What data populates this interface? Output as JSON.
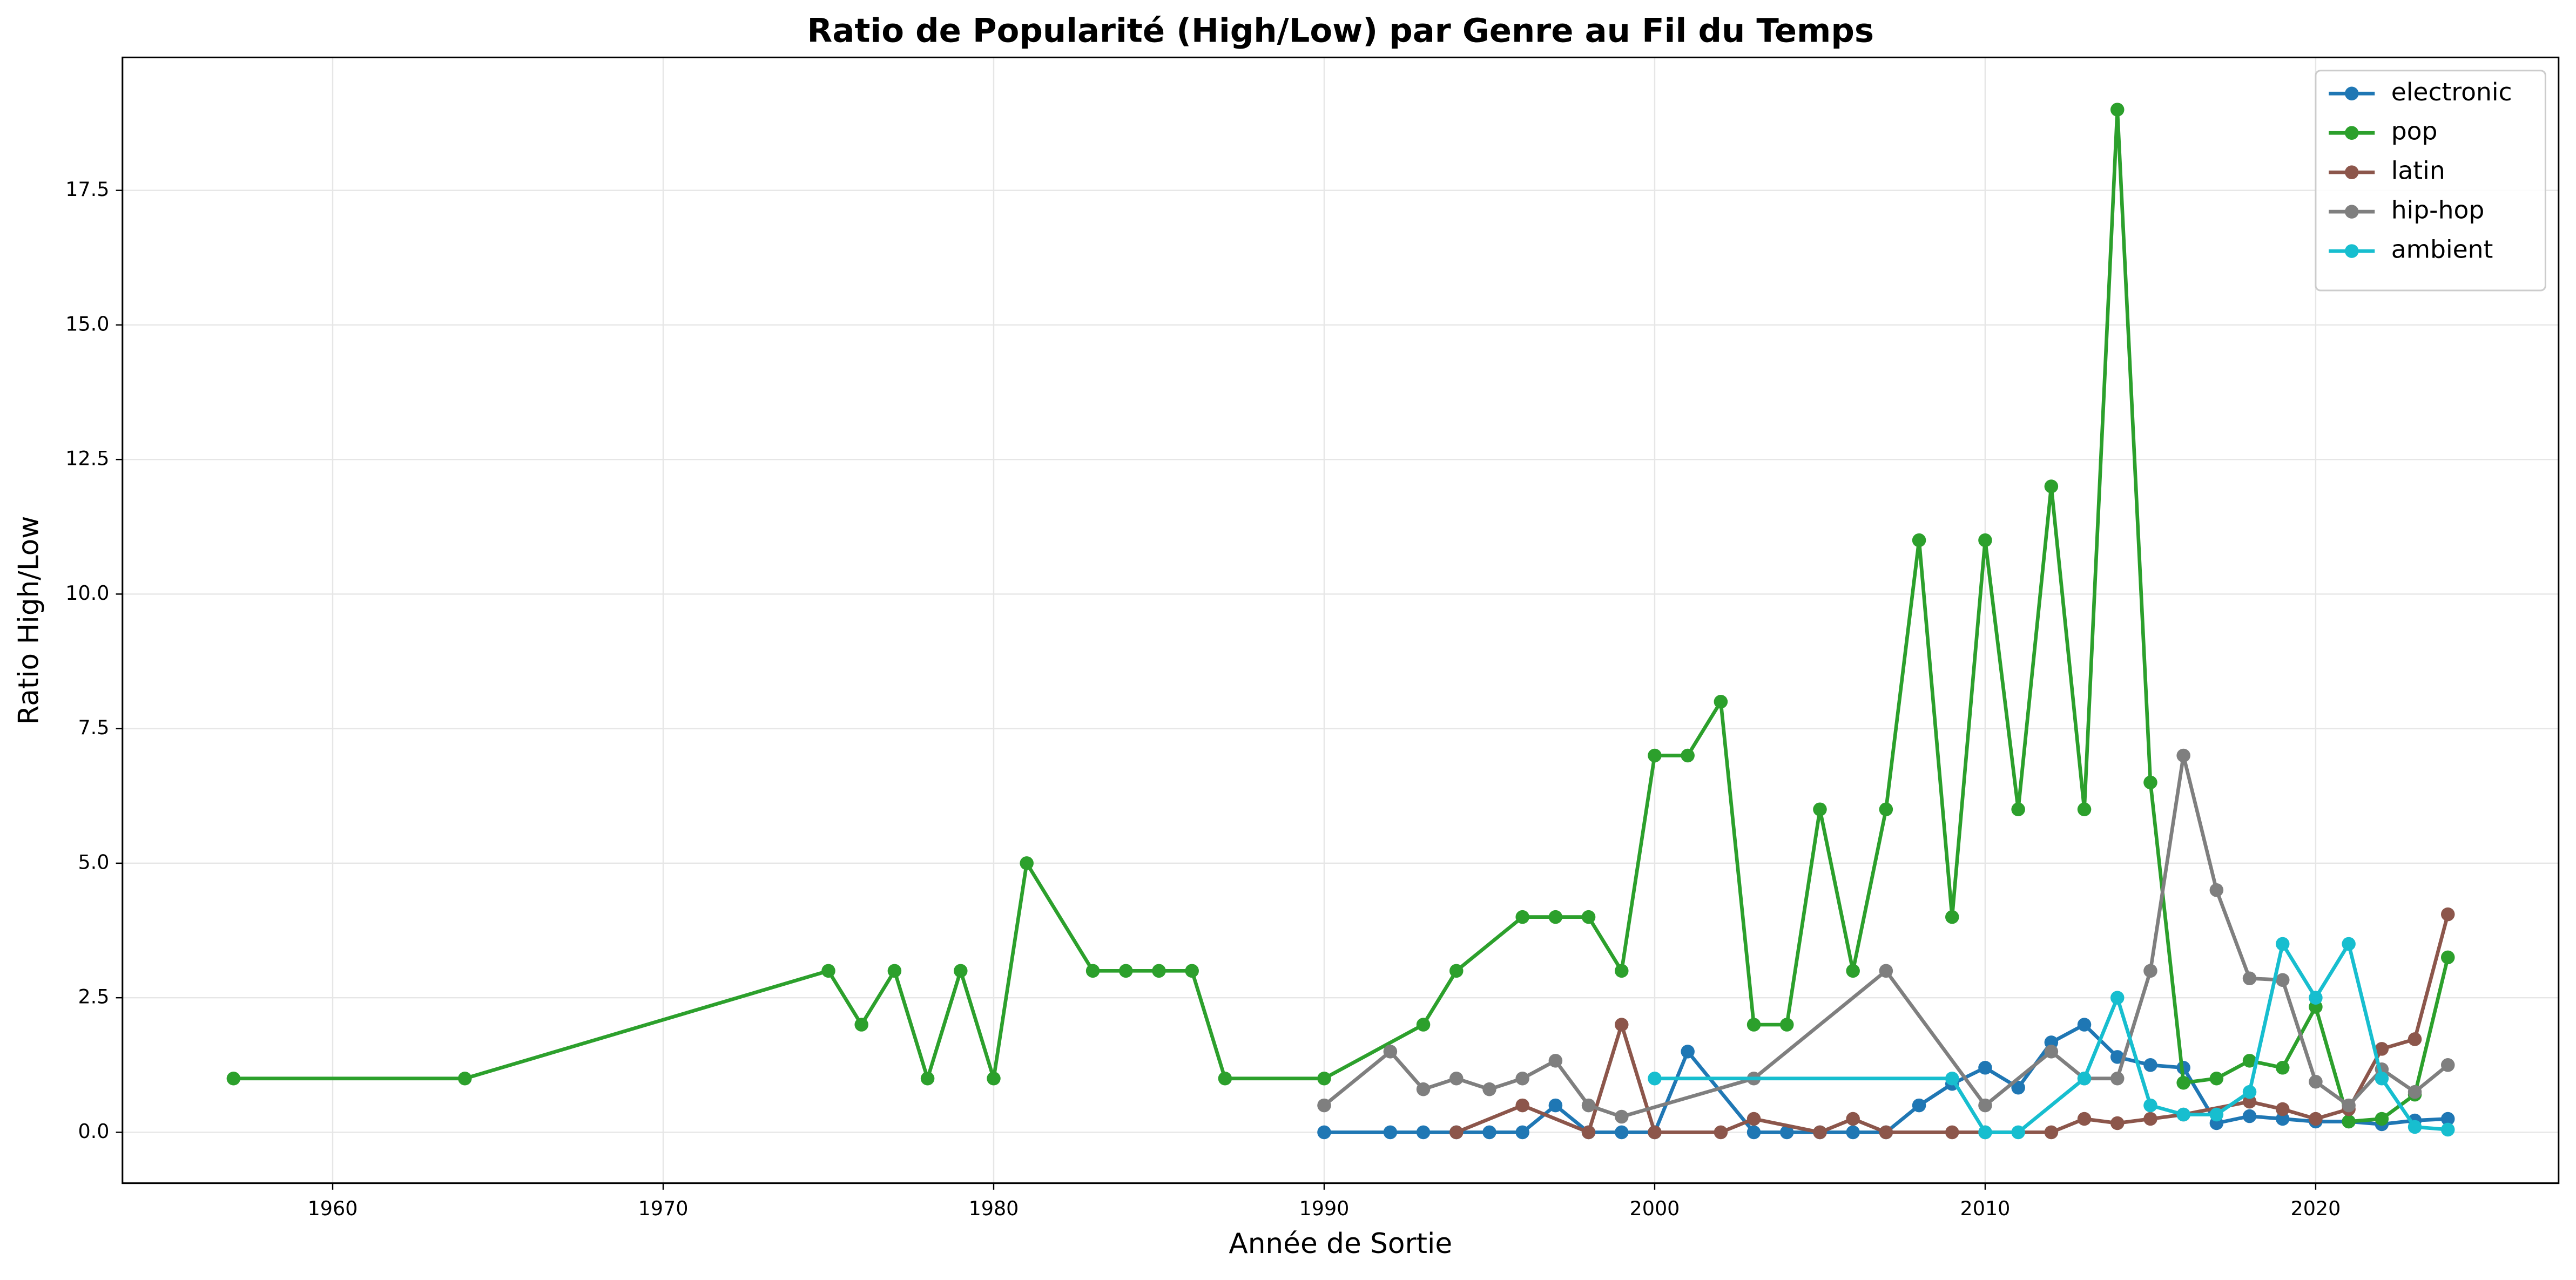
{
  "chart_data": {
    "type": "line",
    "title": "Ratio de Popularité (High/Low) par Genre au Fil du Temps",
    "x_label": "Année de Sortie",
    "y_label": "Ratio High/Low",
    "xlim": [
      1953.64,
      2027.35
    ],
    "ylim": [
      -0.945,
      19.97
    ],
    "xticks": [
      1960,
      1970,
      1980,
      1990,
      2000,
      2010,
      2020
    ],
    "yticks": [
      {
        "value": 0,
        "label": "0.0"
      },
      2.5,
      {
        "value": 5,
        "label": "5.0"
      },
      7.5,
      {
        "value": 10,
        "label": "10.0"
      },
      12.5,
      {
        "value": 15,
        "label": "15.0"
      },
      17.5
    ],
    "grid": true,
    "legend": "upper right",
    "series": [
      {
        "name": "electronic",
        "color": "#1f77b4",
        "x": [
          1990,
          1992,
          1993,
          1994,
          1995,
          1996,
          1997,
          1998,
          1999,
          2000,
          2001,
          2003,
          2004,
          2005,
          2006,
          2007,
          2008,
          2009,
          2010,
          2011,
          2012,
          2013,
          2014,
          2015,
          2016,
          2017,
          2018,
          2019,
          2020,
          2021,
          2022,
          2023,
          2024
        ],
        "values": [
          0,
          0,
          0,
          0,
          0,
          0,
          0.5,
          0,
          0,
          0,
          1.5,
          0,
          0,
          0,
          0,
          0,
          0.5,
          0.9,
          1.2,
          0.83,
          1.67,
          2.0,
          1.4,
          1.25,
          1.2,
          0.17,
          0.3,
          0.25,
          0.2,
          0.2,
          0.15,
          0.22,
          0.25
        ]
      },
      {
        "name": "pop",
        "color": "#2ca02c",
        "x": [
          1957,
          1964,
          1975,
          1976,
          1977,
          1978,
          1979,
          1980,
          1981,
          1983,
          1984,
          1985,
          1986,
          1987,
          1990,
          1993,
          1994,
          1996,
          1997,
          1998,
          1999,
          2000,
          2001,
          2002,
          2003,
          2004,
          2005,
          2006,
          2007,
          2008,
          2009,
          2010,
          2011,
          2012,
          2013,
          2014,
          2015,
          2016,
          2017,
          2018,
          2019,
          2020,
          2021,
          2022,
          2023,
          2024
        ],
        "values": [
          1,
          1,
          3,
          2,
          3,
          1,
          3,
          1,
          5,
          3,
          3,
          3,
          3,
          1,
          1,
          2,
          3,
          4,
          4,
          4,
          3,
          7,
          7,
          8,
          2,
          2,
          6,
          3,
          6,
          11,
          4,
          11,
          6,
          12,
          6,
          19,
          6.5,
          0.92,
          1.0,
          1.33,
          1.2,
          2.33,
          0.2,
          0.25,
          0.7,
          3.25
        ]
      },
      {
        "name": "latin",
        "color": "#8c564b",
        "x": [
          1994,
          1996,
          1998,
          1999,
          2000,
          2002,
          2003,
          2005,
          2006,
          2007,
          2009,
          2010,
          2012,
          2013,
          2014,
          2015,
          2016,
          2018,
          2019,
          2020,
          2021,
          2022,
          2023,
          2024
        ],
        "values": [
          0,
          0.5,
          0,
          2,
          0,
          0,
          0.25,
          0,
          0.25,
          0,
          0,
          0,
          0,
          0.25,
          0.17,
          0.25,
          0.33,
          0.57,
          0.43,
          0.25,
          0.43,
          1.55,
          1.73,
          4.05
        ]
      },
      {
        "name": "hip-hop",
        "color": "#7f7f7f",
        "x": [
          1990,
          1992,
          1993,
          1994,
          1995,
          1996,
          1997,
          1998,
          1999,
          2003,
          2007,
          2010,
          2012,
          2013,
          2014,
          2015,
          2016,
          2017,
          2018,
          2019,
          2020,
          2021,
          2022,
          2023,
          2024
        ],
        "values": [
          0.5,
          1.5,
          0.8,
          1.0,
          0.8,
          1.0,
          1.33,
          0.5,
          0.29,
          1.0,
          3.0,
          0.5,
          1.5,
          1.0,
          1.0,
          3.0,
          7.0,
          4.5,
          2.86,
          2.83,
          0.94,
          0.5,
          1.17,
          0.75,
          1.25
        ]
      },
      {
        "name": "ambient",
        "color": "#17becf",
        "x": [
          2000,
          2009,
          2010,
          2011,
          2013,
          2014,
          2015,
          2016,
          2017,
          2018,
          2019,
          2020,
          2021,
          2022,
          2023,
          2024
        ],
        "values": [
          1.0,
          1.0,
          0,
          0,
          1.0,
          2.5,
          0.5,
          0.33,
          0.33,
          0.75,
          3.5,
          2.5,
          3.5,
          1.0,
          0.1,
          0.05
        ]
      }
    ]
  }
}
